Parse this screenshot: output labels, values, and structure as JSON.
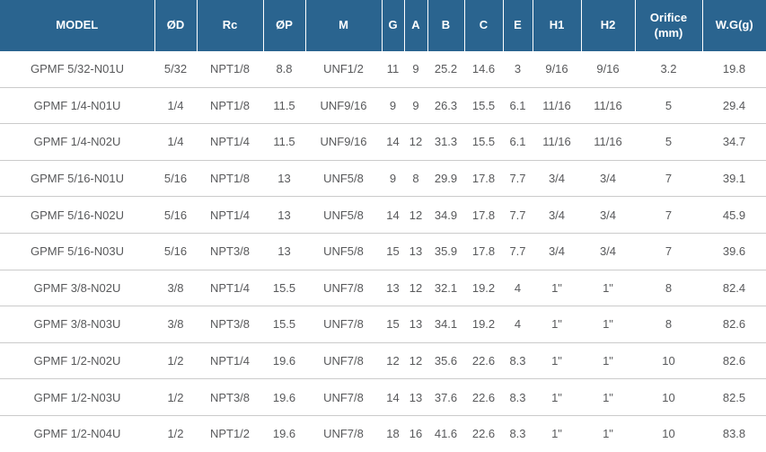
{
  "colors": {
    "header_bg": "#2A648F",
    "header_text": "#FFFFFF",
    "header_divider": "rgba(255,255,255,0.55)",
    "body_text": "#58595B",
    "row_divider": "#CBCBCB"
  },
  "table": {
    "columns": [
      {
        "key": "model",
        "label": "MODEL"
      },
      {
        "key": "od",
        "label": "ØD"
      },
      {
        "key": "rc",
        "label": "Rc"
      },
      {
        "key": "op",
        "label": "ØP"
      },
      {
        "key": "m",
        "label": "M"
      },
      {
        "key": "g",
        "label": "G"
      },
      {
        "key": "a",
        "label": "A"
      },
      {
        "key": "b",
        "label": "B"
      },
      {
        "key": "c",
        "label": "C"
      },
      {
        "key": "e",
        "label": "E"
      },
      {
        "key": "h1",
        "label": "H1"
      },
      {
        "key": "h2",
        "label": "H2"
      },
      {
        "key": "orifice_mm",
        "label": "Orifice (mm)"
      },
      {
        "key": "wg_g",
        "label": "W.G(g)"
      }
    ],
    "rows": [
      [
        "GPMF 5/32-N01U",
        "5/32",
        "NPT1/8",
        "8.8",
        "UNF1/2",
        "11",
        "9",
        "25.2",
        "14.6",
        "3",
        "9/16",
        "9/16",
        "3.2",
        "19.8"
      ],
      [
        "GPMF 1/4-N01U",
        "1/4",
        "NPT1/8",
        "11.5",
        "UNF9/16",
        "9",
        "9",
        "26.3",
        "15.5",
        "6.1",
        "11/16",
        "11/16",
        "5",
        "29.4"
      ],
      [
        "GPMF 1/4-N02U",
        "1/4",
        "NPT1/4",
        "11.5",
        "UNF9/16",
        "14",
        "12",
        "31.3",
        "15.5",
        "6.1",
        "11/16",
        "11/16",
        "5",
        "34.7"
      ],
      [
        "GPMF 5/16-N01U",
        "5/16",
        "NPT1/8",
        "13",
        "UNF5/8",
        "9",
        "8",
        "29.9",
        "17.8",
        "7.7",
        "3/4",
        "3/4",
        "7",
        "39.1"
      ],
      [
        "GPMF 5/16-N02U",
        "5/16",
        "NPT1/4",
        "13",
        "UNF5/8",
        "14",
        "12",
        "34.9",
        "17.8",
        "7.7",
        "3/4",
        "3/4",
        "7",
        "45.9"
      ],
      [
        "GPMF 5/16-N03U",
        "5/16",
        "NPT3/8",
        "13",
        "UNF5/8",
        "15",
        "13",
        "35.9",
        "17.8",
        "7.7",
        "3/4",
        "3/4",
        "7",
        "39.6"
      ],
      [
        "GPMF 3/8-N02U",
        "3/8",
        "NPT1/4",
        "15.5",
        "UNF7/8",
        "13",
        "12",
        "32.1",
        "19.2",
        "4",
        "1\"",
        "1\"",
        "8",
        "82.4"
      ],
      [
        "GPMF 3/8-N03U",
        "3/8",
        "NPT3/8",
        "15.5",
        "UNF7/8",
        "15",
        "13",
        "34.1",
        "19.2",
        "4",
        "1\"",
        "1\"",
        "8",
        "82.6"
      ],
      [
        "GPMF 1/2-N02U",
        "1/2",
        "NPT1/4",
        "19.6",
        "UNF7/8",
        "12",
        "12",
        "35.6",
        "22.6",
        "8.3",
        "1\"",
        "1\"",
        "10",
        "82.6"
      ],
      [
        "GPMF 1/2-N03U",
        "1/2",
        "NPT3/8",
        "19.6",
        "UNF7/8",
        "14",
        "13",
        "37.6",
        "22.6",
        "8.3",
        "1\"",
        "1\"",
        "10",
        "82.5"
      ],
      [
        "GPMF 1/2-N04U",
        "1/2",
        "NPT1/2",
        "19.6",
        "UNF7/8",
        "18",
        "16",
        "41.6",
        "22.6",
        "8.3",
        "1\"",
        "1\"",
        "10",
        "83.8"
      ]
    ]
  }
}
